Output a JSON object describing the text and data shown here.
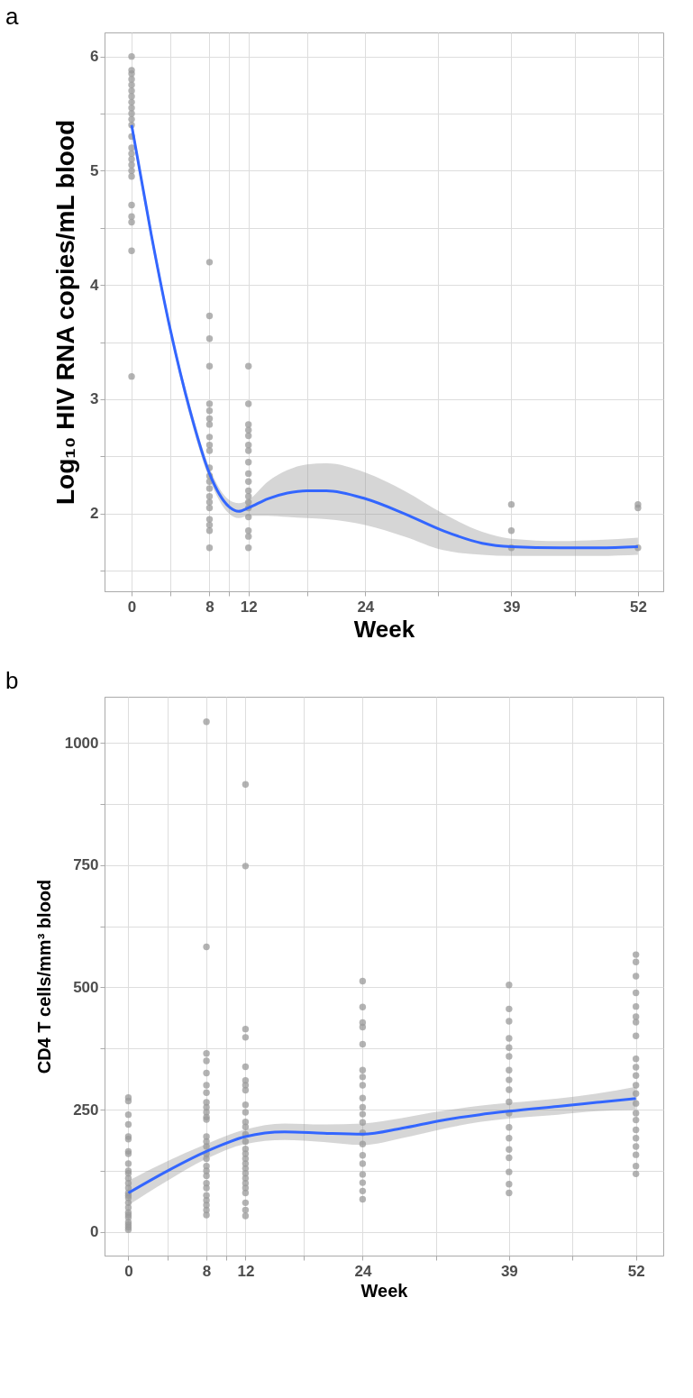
{
  "chart_data": [
    {
      "type": "scatter",
      "title": "a",
      "xlabel": "Week",
      "ylabel": "Log₁₀ HIV RNA copies/mL blood",
      "grid": true,
      "xlim": [
        -2.78,
        54.6
      ],
      "ylim": [
        1.32,
        6.21
      ],
      "xticks": [
        0,
        {
          "value": 4,
          "label": null
        },
        8,
        {
          "value": 10,
          "label": null
        },
        12,
        {
          "value": 18,
          "label": null
        },
        24,
        {
          "value": 31.5,
          "label": null
        },
        39,
        {
          "value": 45.5,
          "label": null
        },
        52
      ],
      "yticks": [
        {
          "value": 1.5,
          "label": null
        },
        2,
        {
          "value": 2.5,
          "label": null
        },
        3,
        {
          "value": 3.5,
          "label": null
        },
        4,
        {
          "value": 4.5,
          "label": null
        },
        5,
        {
          "value": 5.5,
          "label": null
        },
        6
      ],
      "series": [
        {
          "marker": "circle",
          "color": "#999999",
          "x": [
            0,
            0,
            0,
            0,
            0,
            0,
            0,
            0,
            0,
            0,
            0,
            0,
            0,
            0,
            0,
            0,
            0,
            0,
            0,
            0,
            0,
            0,
            0,
            0,
            8,
            8,
            8,
            8,
            8,
            8,
            8,
            8,
            8,
            8,
            8,
            8,
            8,
            8,
            8,
            8,
            8,
            8,
            8,
            8,
            8,
            8,
            12,
            12,
            12,
            12,
            12,
            12,
            12,
            12,
            12,
            12,
            12,
            12,
            12,
            12,
            12,
            12,
            12,
            12,
            39,
            39,
            39,
            52,
            52,
            52
          ],
          "values": [
            6.0,
            5.88,
            5.85,
            5.8,
            5.75,
            5.7,
            5.65,
            5.6,
            5.55,
            5.5,
            5.45,
            5.4,
            5.3,
            5.2,
            5.15,
            5.1,
            5.05,
            5.0,
            4.95,
            4.7,
            4.6,
            4.55,
            4.3,
            3.2,
            4.2,
            3.73,
            3.53,
            3.29,
            2.96,
            2.9,
            2.83,
            2.78,
            2.67,
            2.6,
            2.55,
            2.4,
            2.33,
            2.28,
            2.22,
            2.15,
            2.1,
            2.05,
            1.95,
            1.9,
            1.85,
            1.7,
            3.29,
            2.96,
            2.78,
            2.73,
            2.68,
            2.6,
            2.55,
            2.45,
            2.35,
            2.28,
            2.2,
            2.15,
            2.1,
            2.05,
            1.97,
            1.85,
            1.8,
            1.7,
            2.08,
            1.85,
            1.7,
            2.08,
            2.05,
            1.7
          ]
        },
        {
          "type": "line",
          "color": "#3366ff",
          "line_style": "solid",
          "x": [
            0,
            2,
            4,
            6,
            8,
            10,
            11,
            12,
            14,
            16,
            18,
            20,
            24,
            28,
            32,
            36,
            39,
            44,
            48,
            52
          ],
          "values": [
            5.4,
            4.45,
            3.6,
            2.9,
            2.35,
            2.06,
            2.02,
            2.05,
            2.13,
            2.18,
            2.2,
            2.2,
            2.13,
            2.0,
            1.85,
            1.74,
            1.71,
            1.7,
            1.7,
            1.71
          ],
          "lower": [
            5.35,
            4.4,
            3.56,
            2.85,
            2.3,
            2.0,
            1.96,
            1.98,
            1.98,
            1.97,
            1.96,
            1.95,
            1.9,
            1.8,
            1.68,
            1.64,
            1.63,
            1.63,
            1.63,
            1.64
          ],
          "upper": [
            5.45,
            4.5,
            3.64,
            2.95,
            2.4,
            2.12,
            2.09,
            2.12,
            2.28,
            2.38,
            2.43,
            2.44,
            2.36,
            2.2,
            2.0,
            1.84,
            1.78,
            1.76,
            1.77,
            1.79
          ]
        }
      ]
    },
    {
      "type": "scatter",
      "title": "b",
      "xlabel": "Week",
      "ylabel": "CD4 T cells/mm³ blood",
      "grid": true,
      "xlim": [
        -2.44,
        54.8
      ],
      "ylim": [
        -48,
        1094
      ],
      "xticks": [
        0,
        {
          "value": 4,
          "label": null
        },
        8,
        {
          "value": 10,
          "label": null
        },
        12,
        {
          "value": 18,
          "label": null
        },
        24,
        {
          "value": 31.5,
          "label": null
        },
        39,
        {
          "value": 45.5,
          "label": null
        },
        52
      ],
      "yticks": [
        0,
        {
          "value": 125,
          "label": null
        },
        250,
        {
          "value": 375,
          "label": null
        },
        500,
        {
          "value": 625,
          "label": null
        },
        750,
        {
          "value": 875,
          "label": null
        },
        1000
      ],
      "series": [
        {
          "marker": "circle",
          "color": "#999999",
          "x": [
            0,
            0,
            0,
            0,
            0,
            0,
            0,
            0,
            0,
            0,
            0,
            0,
            0,
            0,
            0,
            0,
            0,
            0,
            0,
            0,
            0,
            0,
            0,
            0,
            0,
            0,
            8,
            8,
            8,
            8,
            8,
            8,
            8,
            8,
            8,
            8,
            8,
            8,
            8,
            8,
            8,
            8,
            8,
            8,
            8,
            8,
            8,
            8,
            8,
            8,
            8,
            8,
            8,
            12,
            12,
            12,
            12,
            12,
            12,
            12,
            12,
            12,
            12,
            12,
            12,
            12,
            12,
            12,
            12,
            12,
            12,
            12,
            12,
            12,
            12,
            12,
            12,
            12,
            12,
            12,
            24,
            24,
            24,
            24,
            24,
            24,
            24,
            24,
            24,
            24,
            24,
            24,
            24,
            24,
            24,
            24,
            24,
            24,
            24,
            24,
            39,
            39,
            39,
            39,
            39,
            39,
            39,
            39,
            39,
            39,
            39,
            39,
            39,
            39,
            39,
            39,
            39,
            39,
            52,
            52,
            52,
            52,
            52,
            52,
            52,
            52,
            52,
            52,
            52,
            52,
            52,
            52,
            52,
            52,
            52,
            52,
            52,
            52,
            52,
            52
          ],
          "values": [
            275,
            268,
            240,
            220,
            195,
            190,
            165,
            160,
            140,
            125,
            120,
            110,
            100,
            90,
            80,
            75,
            70,
            60,
            50,
            40,
            35,
            30,
            20,
            15,
            10,
            5,
            1043,
            583,
            365,
            350,
            325,
            300,
            285,
            265,
            255,
            245,
            235,
            230,
            195,
            185,
            175,
            160,
            150,
            135,
            125,
            115,
            100,
            90,
            75,
            65,
            55,
            45,
            35,
            915,
            748,
            415,
            398,
            338,
            310,
            300,
            290,
            260,
            245,
            225,
            215,
            200,
            185,
            170,
            160,
            150,
            140,
            130,
            120,
            110,
            100,
            90,
            80,
            60,
            45,
            33,
            513,
            460,
            428,
            419,
            384,
            331,
            317,
            300,
            274,
            255,
            241,
            224,
            203,
            180,
            157,
            140,
            118,
            101,
            84,
            67,
            505,
            456,
            431,
            396,
            377,
            359,
            331,
            311,
            291,
            266,
            243,
            214,
            192,
            169,
            152,
            123,
            98,
            80,
            567,
            552,
            523,
            489,
            461,
            440,
            429,
            401,
            354,
            337,
            320,
            300,
            283,
            263,
            243,
            229,
            209,
            192,
            175,
            158,
            135,
            119
          ]
        },
        {
          "type": "line",
          "color": "#3366ff",
          "line_style": "solid",
          "x": [
            0,
            4,
            8,
            12,
            16,
            20,
            24,
            28,
            32,
            36,
            39,
            44,
            48,
            52
          ],
          "values": [
            80,
            125,
            165,
            195,
            205,
            202,
            200,
            212,
            228,
            240,
            247,
            257,
            265,
            273
          ],
          "lower": [
            55,
            105,
            150,
            180,
            188,
            184,
            178,
            192,
            210,
            225,
            232,
            240,
            247,
            250
          ],
          "upper": [
            105,
            145,
            180,
            210,
            222,
            220,
            222,
            233,
            247,
            258,
            264,
            273,
            283,
            297
          ]
        }
      ]
    }
  ]
}
